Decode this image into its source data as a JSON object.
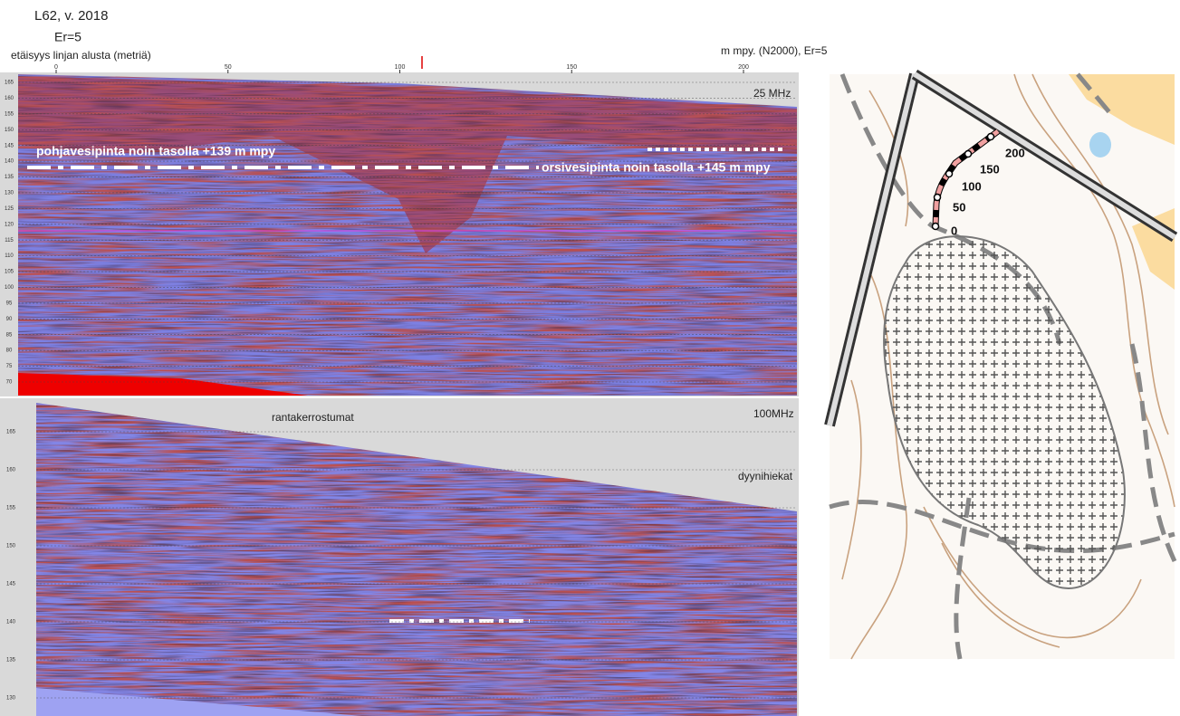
{
  "header": {
    "title": "L62, v. 2018",
    "permittivity": "Er=5",
    "x_axis_label": "etäisyys linjan alusta (metriä)",
    "y_axis_label": "m mpy. (N2000), Er=5"
  },
  "distance_ticks": [
    0,
    50,
    100,
    150,
    200
  ],
  "panel_25mhz": {
    "frequency": "25 MHz",
    "y_ticks": [
      165,
      160,
      155,
      150,
      145,
      140,
      135,
      130,
      125,
      120,
      115,
      110,
      105,
      100,
      95,
      90,
      85,
      80,
      75,
      70
    ],
    "annotations": [
      "pohjavesipinta noin tasolla +139 m mpy",
      "orsivesipinta noin tasolla +145 m mpy"
    ]
  },
  "panel_100mhz": {
    "frequency": "100MHz",
    "y_ticks": [
      165,
      160,
      155,
      150,
      145,
      140,
      135,
      130
    ],
    "annotations": [
      "rantakerrostumat",
      "dyynihiekat"
    ]
  },
  "map": {
    "route_labels": [
      "0",
      "50",
      "100",
      "150",
      "200"
    ]
  }
}
